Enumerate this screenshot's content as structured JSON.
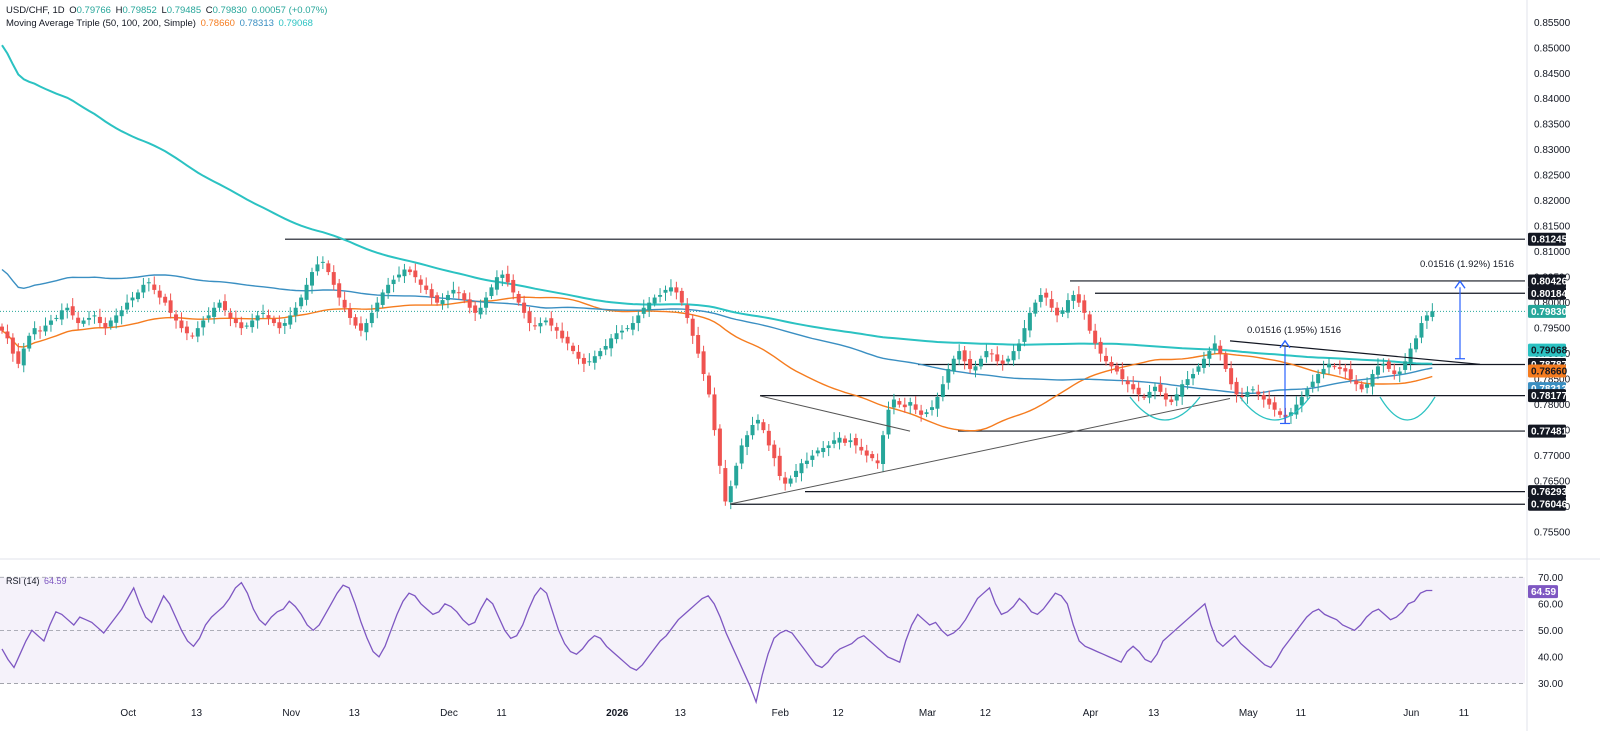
{
  "header": {
    "symbol": "USD/CHF, 1D",
    "open_label": "O",
    "open": "0.79766",
    "high_label": "H",
    "high": "0.79852",
    "low_label": "L",
    "low": "0.79485",
    "close_label": "C",
    "close": "0.79830",
    "change": "0.00057 (+0.07%)",
    "ma_label": "Moving Average Triple (50, 100, 200, Simple)",
    "ma50": "0.78660",
    "ma100": "0.78313",
    "ma200": "0.79068",
    "rsi_label": "RSI (14)",
    "rsi_value": "64.59"
  },
  "colors": {
    "up": "#26a69a",
    "down": "#ef5350",
    "ma50": "#f57c1f",
    "ma100": "#3a8fc2",
    "ma200": "#2bc2c2",
    "rsi": "#7e57c2",
    "rsi_band": "#7e57c2",
    "arrow": "#2962ff",
    "level_line": "#131722",
    "close_line": "#26a69a"
  },
  "chart_data": [
    {
      "type": "candlestick",
      "y_axis_ticks": [
        "0.75500",
        "0.76000",
        "0.76500",
        "0.77000",
        "0.77500",
        "0.78000",
        "0.78500",
        "0.79000",
        "0.79500",
        "0.80000",
        "0.80500",
        "0.81000",
        "0.81500",
        "0.82000",
        "0.82500",
        "0.83000",
        "0.83500",
        "0.84000",
        "0.84500",
        "0.85000",
        "0.85500"
      ],
      "ylim": [
        0.7505,
        0.8578
      ],
      "x_axis_labels": [
        {
          "label": "Oct",
          "day": 24
        },
        {
          "label": "13",
          "day": 37
        },
        {
          "label": "Nov",
          "day": 55
        },
        {
          "label": "13",
          "day": 67
        },
        {
          "label": "Dec",
          "day": 85
        },
        {
          "label": "11",
          "day": 95
        },
        {
          "label": "2026",
          "day": 117,
          "bold": true
        },
        {
          "label": "13",
          "day": 129
        },
        {
          "label": "Feb",
          "day": 148
        },
        {
          "label": "12",
          "day": 159
        },
        {
          "label": "Mar",
          "day": 176
        },
        {
          "label": "12",
          "day": 187
        },
        {
          "label": "Apr",
          "day": 207
        },
        {
          "label": "13",
          "day": 219
        },
        {
          "label": "May",
          "day": 237
        },
        {
          "label": "11",
          "day": 247
        },
        {
          "label": "Jun",
          "day": 268
        },
        {
          "label": "11",
          "day": 278
        }
      ],
      "x_range_days": [
        0,
        290
      ],
      "close_values": [
        0.7945,
        0.793,
        0.79,
        0.788,
        0.791,
        0.7935,
        0.795,
        0.7945,
        0.7955,
        0.7965,
        0.797,
        0.7985,
        0.799,
        0.7975,
        0.796,
        0.7965,
        0.797,
        0.7975,
        0.796,
        0.795,
        0.7965,
        0.7975,
        0.7985,
        0.8,
        0.801,
        0.802,
        0.8035,
        0.804,
        0.8025,
        0.801,
        0.8,
        0.798,
        0.7965,
        0.795,
        0.794,
        0.7935,
        0.795,
        0.7965,
        0.7975,
        0.799,
        0.8,
        0.7985,
        0.797,
        0.796,
        0.795,
        0.7955,
        0.7965,
        0.7975,
        0.798,
        0.797,
        0.796,
        0.795,
        0.796,
        0.7975,
        0.799,
        0.801,
        0.8035,
        0.806,
        0.8075,
        0.808,
        0.806,
        0.8035,
        0.801,
        0.799,
        0.797,
        0.7955,
        0.7945,
        0.796,
        0.798,
        0.8,
        0.802,
        0.8035,
        0.8045,
        0.8055,
        0.8065,
        0.806,
        0.805,
        0.8035,
        0.8025,
        0.801,
        0.8,
        0.8005,
        0.8015,
        0.8025,
        0.802,
        0.8005,
        0.799,
        0.798,
        0.799,
        0.801,
        0.803,
        0.805,
        0.8055,
        0.804,
        0.802,
        0.8,
        0.798,
        0.796,
        0.7955,
        0.796,
        0.7965,
        0.7955,
        0.7945,
        0.793,
        0.792,
        0.7905,
        0.789,
        0.788,
        0.7885,
        0.7895,
        0.7905,
        0.7915,
        0.793,
        0.794,
        0.7945,
        0.795,
        0.796,
        0.7975,
        0.799,
        0.8,
        0.801,
        0.8015,
        0.8025,
        0.803,
        0.802,
        0.8,
        0.797,
        0.7935,
        0.79,
        0.786,
        0.782,
        0.775,
        0.768,
        0.761,
        0.764,
        0.768,
        0.772,
        0.774,
        0.776,
        0.777,
        0.775,
        0.772,
        0.7695,
        0.766,
        0.7645,
        0.7655,
        0.767,
        0.7685,
        0.769,
        0.77,
        0.771,
        0.7715,
        0.772,
        0.773,
        0.7735,
        0.7725,
        0.773,
        0.772,
        0.771,
        0.77,
        0.7695,
        0.7685,
        0.774,
        0.779,
        0.781,
        0.78,
        0.7795,
        0.7805,
        0.779,
        0.778,
        0.7785,
        0.7795,
        0.7815,
        0.784,
        0.787,
        0.789,
        0.7905,
        0.7885,
        0.787,
        0.7875,
        0.789,
        0.7905,
        0.79,
        0.7885,
        0.788,
        0.789,
        0.7905,
        0.792,
        0.795,
        0.798,
        0.8,
        0.8015,
        0.801,
        0.799,
        0.7975,
        0.7985,
        0.8005,
        0.8015,
        0.8,
        0.798,
        0.7945,
        0.792,
        0.79,
        0.7885,
        0.7875,
        0.7865,
        0.785,
        0.784,
        0.783,
        0.782,
        0.7815,
        0.7825,
        0.7835,
        0.7825,
        0.781,
        0.7805,
        0.782,
        0.784,
        0.785,
        0.786,
        0.7875,
        0.789,
        0.7905,
        0.792,
        0.79,
        0.787,
        0.784,
        0.782,
        0.7815,
        0.7825,
        0.783,
        0.782,
        0.781,
        0.78,
        0.779,
        0.778,
        0.7775,
        0.7785,
        0.78,
        0.7815,
        0.783,
        0.7845,
        0.786,
        0.787,
        0.788,
        0.7875,
        0.787,
        0.7865,
        0.785,
        0.784,
        0.783,
        0.784,
        0.786,
        0.7875,
        0.788,
        0.787,
        0.786,
        0.7865,
        0.7885,
        0.791,
        0.793,
        0.796,
        0.7975,
        0.7983
      ],
      "levels": [
        "0.81245",
        "0.80426",
        "0.80184",
        "0.78787",
        "0.78177",
        "0.77481",
        "0.76293",
        "0.76046"
      ],
      "price_tags": [
        {
          "text": "0.81245",
          "kind": "level"
        },
        {
          "text": "0.80426",
          "kind": "level"
        },
        {
          "text": "0.80184",
          "kind": "level"
        },
        {
          "text": "0.79830",
          "kind": "close"
        },
        {
          "text": "0.79068",
          "kind": "ma200"
        },
        {
          "text": "0.78787",
          "kind": "level"
        },
        {
          "text": "0.78660",
          "kind": "ma50"
        },
        {
          "text": "0.78313",
          "kind": "ma100"
        },
        {
          "text": "0.78177",
          "kind": "level"
        },
        {
          "text": "0.77481",
          "kind": "level"
        },
        {
          "text": "0.76293",
          "kind": "level"
        },
        {
          "text": "0.76046",
          "kind": "level"
        }
      ],
      "annotations": [
        {
          "text": "0.01516 (1.92%) 1516"
        },
        {
          "text": "0.01516 (1.95%) 1516"
        }
      ]
    },
    {
      "type": "line",
      "name": "RSI (14)",
      "y_axis_ticks": [
        "30.00",
        "40.00",
        "50.00",
        "60.00",
        "70.00"
      ],
      "ylim": [
        23,
        75
      ],
      "last_value": "64.59",
      "values": [
        43,
        39,
        36,
        41,
        46,
        50,
        48,
        46,
        52,
        57,
        56,
        54,
        52,
        55,
        54,
        53,
        51,
        49,
        52,
        55,
        58,
        62,
        66,
        60,
        55,
        53,
        58,
        63,
        60,
        55,
        50,
        46,
        44,
        47,
        52,
        55,
        57,
        59,
        62,
        66,
        68,
        64,
        58,
        54,
        52,
        55,
        57,
        58,
        61,
        59,
        56,
        52,
        50,
        52,
        56,
        60,
        64,
        67,
        66,
        60,
        53,
        47,
        42,
        40,
        44,
        50,
        56,
        61,
        64,
        63,
        60,
        58,
        56,
        57,
        60,
        59,
        57,
        54,
        52,
        53,
        58,
        62,
        60,
        55,
        50,
        47,
        48,
        52,
        58,
        63,
        66,
        64,
        57,
        50,
        45,
        42,
        41,
        43,
        46,
        48,
        47,
        44,
        42,
        40,
        38,
        36,
        35,
        37,
        40,
        43,
        46,
        48,
        51,
        54,
        56,
        58,
        60,
        62,
        63,
        60,
        55,
        49,
        44,
        39,
        34,
        29,
        23,
        33,
        41,
        47,
        49,
        50,
        49,
        46,
        43,
        40,
        37,
        36,
        38,
        41,
        43,
        44,
        45,
        47,
        48,
        46,
        44,
        42,
        40,
        39,
        38,
        46,
        52,
        56,
        54,
        52,
        53,
        50,
        48,
        49,
        51,
        54,
        58,
        62,
        64,
        66,
        60,
        56,
        57,
        59,
        62,
        60,
        57,
        56,
        58,
        61,
        64,
        63,
        60,
        52,
        46,
        44,
        43,
        42,
        41,
        40,
        39,
        38,
        42,
        44,
        42,
        39,
        38,
        41,
        46,
        48,
        50,
        52,
        54,
        56,
        58,
        60,
        52,
        46,
        44,
        46,
        48,
        45,
        43,
        41,
        39,
        37,
        36,
        39,
        43,
        46,
        49,
        52,
        55,
        57,
        58,
        56,
        55,
        54,
        52,
        51,
        50,
        52,
        55,
        57,
        58,
        56,
        54,
        55,
        57,
        60,
        61,
        64,
        65,
        65
      ]
    }
  ]
}
